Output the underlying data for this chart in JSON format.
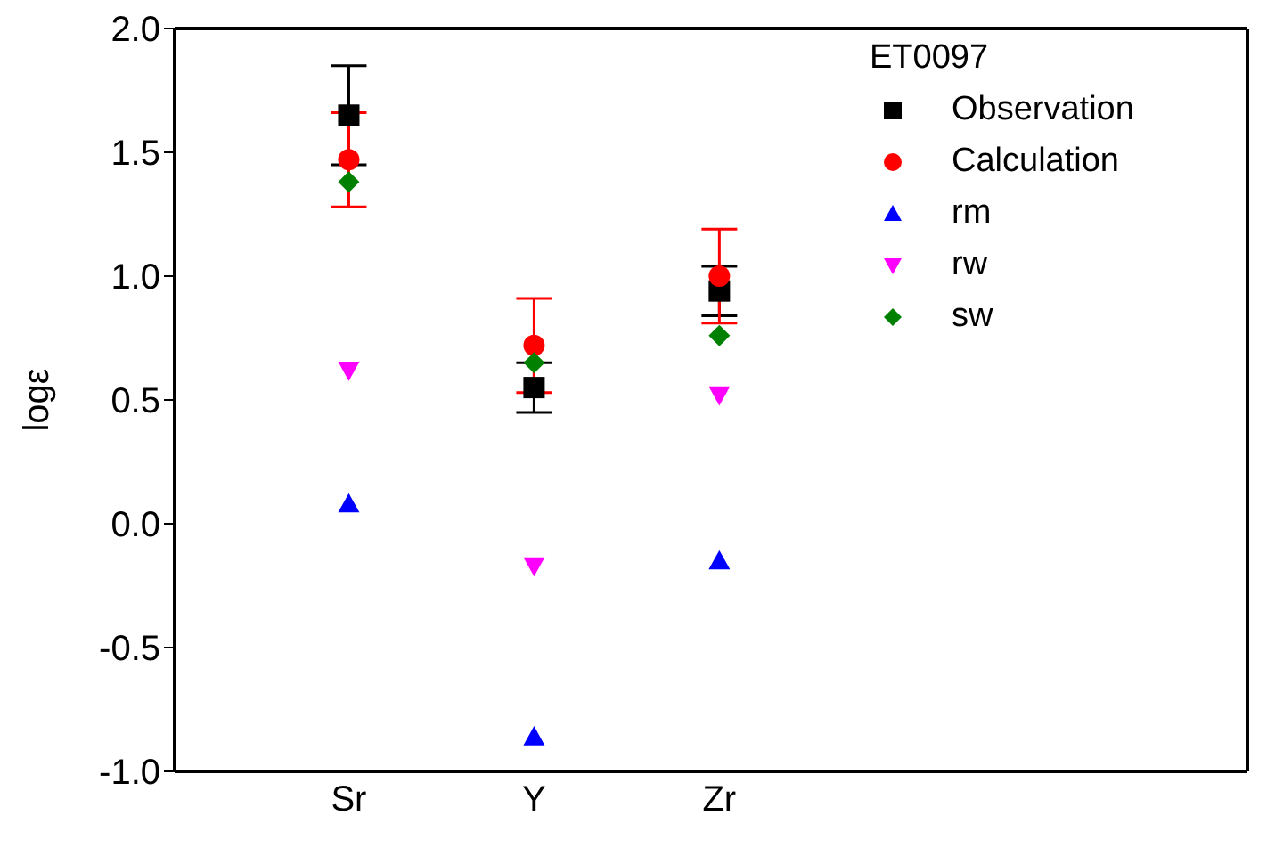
{
  "chart_data": {
    "type": "scatter",
    "ylabel": "logε",
    "categories": [
      "Sr",
      "Y",
      "Zr"
    ],
    "legend_title": "ET0097",
    "legend": "top right",
    "grid": false,
    "ylim": [
      -1.0,
      2.0
    ],
    "yticks": [
      {
        "value": -1,
        "label": "-1.0"
      },
      {
        "value": -0.5,
        "label": "-0.5"
      },
      {
        "value": 0,
        "label": "0.0"
      },
      {
        "value": 0.5,
        "label": "0.5"
      },
      {
        "value": 1,
        "label": "1.0"
      },
      {
        "value": 1.5,
        "label": "1.5"
      },
      {
        "value": 2,
        "label": "2.0"
      }
    ],
    "series": [
      {
        "name": "Observation",
        "color": "#000000",
        "marker": "square",
        "values": [
          1.65,
          0.55,
          0.94
        ],
        "errors": [
          0.2,
          0.1,
          0.1
        ]
      },
      {
        "name": "Calculation",
        "color": "#ff0000",
        "marker": "circle",
        "values": [
          1.47,
          0.72,
          1.0
        ],
        "errors": [
          0.19,
          0.19,
          0.19
        ]
      },
      {
        "name": "rm",
        "color": "#0000ff",
        "marker": "triangle",
        "values": [
          0.08,
          -0.86,
          -0.15
        ]
      },
      {
        "name": "rw",
        "color": "#ff00ff",
        "marker": "triangle-down",
        "values": [
          0.62,
          -0.17,
          0.52
        ]
      },
      {
        "name": "sw",
        "color": "#008000",
        "marker": "diamond",
        "values": [
          1.38,
          0.65,
          0.76
        ]
      }
    ]
  }
}
